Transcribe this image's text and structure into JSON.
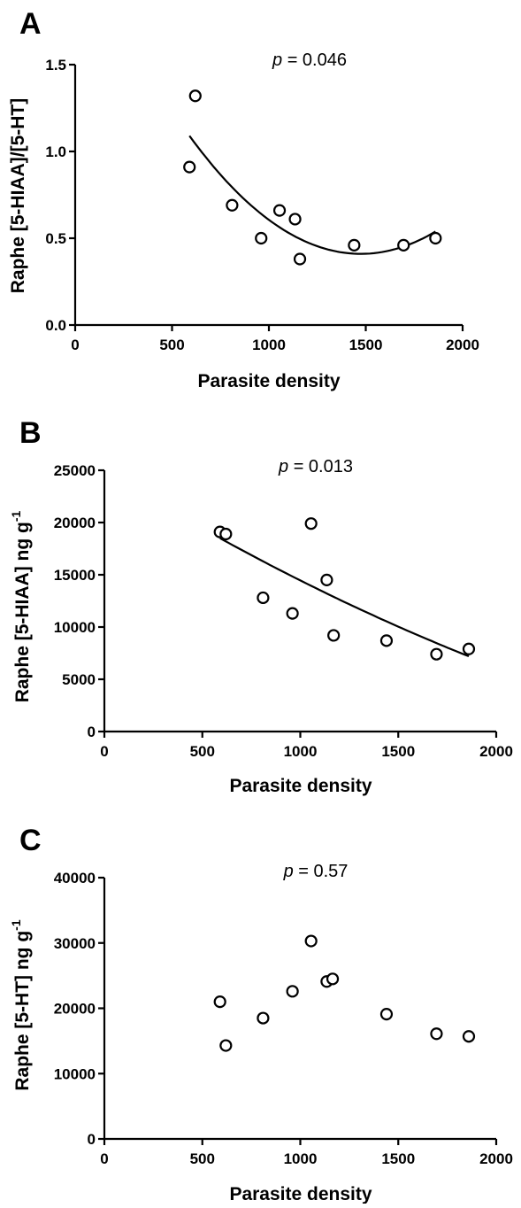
{
  "chart_data": [
    {
      "panel": "A",
      "type": "scatter",
      "annotation": "p = 0.046",
      "annotation_italic_part": "p",
      "annotation_rest": " = 0.046",
      "xlabel": "Parasite density",
      "ylabel": "Raphe [5-HIAA]/[5-HT]",
      "xlim": [
        0,
        2000
      ],
      "ylim": [
        0,
        1.5
      ],
      "xticks": [
        0,
        500,
        1000,
        1500,
        2000
      ],
      "xtick_labels": [
        "0",
        "500",
        "1000",
        "1500",
        "2000"
      ],
      "yticks": [
        0,
        0.5,
        1.0,
        1.5
      ],
      "ytick_labels": [
        "0.0",
        "0.5",
        "1.0",
        "1.5"
      ],
      "points": [
        {
          "x": 590,
          "y": 0.91
        },
        {
          "x": 620,
          "y": 1.32
        },
        {
          "x": 810,
          "y": 0.69
        },
        {
          "x": 960,
          "y": 0.5
        },
        {
          "x": 1055,
          "y": 0.66
        },
        {
          "x": 1135,
          "y": 0.61
        },
        {
          "x": 1160,
          "y": 0.38
        },
        {
          "x": 1440,
          "y": 0.46
        },
        {
          "x": 1695,
          "y": 0.46
        },
        {
          "x": 1860,
          "y": 0.5
        }
      ],
      "fit": {
        "type": "quadratic",
        "x_range": [
          590,
          1860
        ],
        "y_at_x_start": 1.09,
        "y_min": 0.41,
        "x_at_min": 1475,
        "y_at_x_end": 0.53
      }
    },
    {
      "panel": "B",
      "type": "scatter",
      "annotation": "p = 0.013",
      "annotation_italic_part": "p",
      "annotation_rest": " = 0.013",
      "xlabel": "Parasite density",
      "ylabel": "Raphe [5-HIAA] ng g⁻¹",
      "ylabel_main": "Raphe [5-HIAA] ng g",
      "ylabel_sup": "-1",
      "xlim": [
        0,
        2000
      ],
      "ylim": [
        0,
        25000
      ],
      "xticks": [
        0,
        500,
        1000,
        1500,
        2000
      ],
      "xtick_labels": [
        "0",
        "500",
        "1000",
        "1500",
        "2000"
      ],
      "yticks": [
        0,
        5000,
        10000,
        15000,
        20000,
        25000
      ],
      "ytick_labels": [
        "0",
        "5000",
        "10000",
        "15000",
        "20000",
        "25000"
      ],
      "points": [
        {
          "x": 590,
          "y": 19100
        },
        {
          "x": 620,
          "y": 18900
        },
        {
          "x": 810,
          "y": 12800
        },
        {
          "x": 960,
          "y": 11300
        },
        {
          "x": 1055,
          "y": 19900
        },
        {
          "x": 1135,
          "y": 14500
        },
        {
          "x": 1170,
          "y": 9200
        },
        {
          "x": 1440,
          "y": 8700
        },
        {
          "x": 1695,
          "y": 7400
        },
        {
          "x": 1860,
          "y": 7900
        }
      ],
      "fit": {
        "type": "quadratic",
        "x_range": [
          590,
          1860
        ],
        "y_at_x_start": 18500,
        "y_at_x_mid": 12400,
        "x_mid": 1225,
        "y_at_x_end": 7200
      }
    },
    {
      "panel": "C",
      "type": "scatter",
      "annotation": "p = 0.57",
      "annotation_italic_part": "p",
      "annotation_rest": " = 0.57",
      "xlabel": "Parasite density",
      "ylabel": "Raphe [5-HT] ng g⁻¹",
      "ylabel_main": "Raphe [5-HT] ng g",
      "ylabel_sup": "-1",
      "xlim": [
        0,
        2000
      ],
      "ylim": [
        0,
        40000
      ],
      "xticks": [
        0,
        500,
        1000,
        1500,
        2000
      ],
      "xtick_labels": [
        "0",
        "500",
        "1000",
        "1500",
        "2000"
      ],
      "yticks": [
        0,
        10000,
        20000,
        30000,
        40000
      ],
      "ytick_labels": [
        "0",
        "10000",
        "20000",
        "30000",
        "40000"
      ],
      "points": [
        {
          "x": 590,
          "y": 21000
        },
        {
          "x": 620,
          "y": 14300
        },
        {
          "x": 810,
          "y": 18500
        },
        {
          "x": 960,
          "y": 22600
        },
        {
          "x": 1055,
          "y": 30300
        },
        {
          "x": 1135,
          "y": 24100
        },
        {
          "x": 1165,
          "y": 24500
        },
        {
          "x": 1440,
          "y": 19100
        },
        {
          "x": 1695,
          "y": 16100
        },
        {
          "x": 1860,
          "y": 15700
        }
      ],
      "fit": null
    }
  ]
}
